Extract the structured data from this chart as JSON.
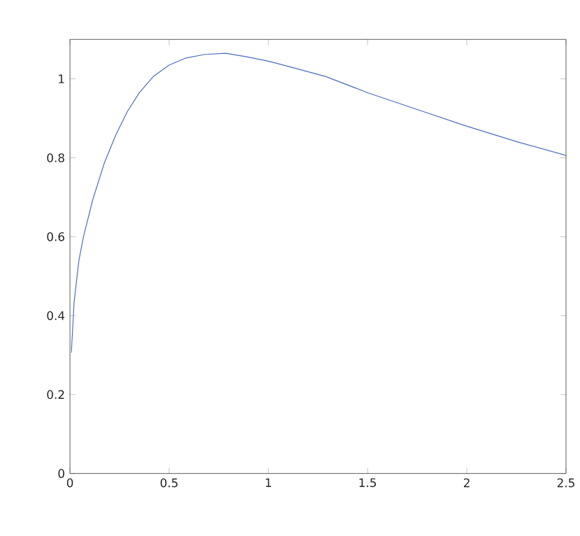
{
  "chart_data": {
    "type": "line",
    "x": [
      0.007,
      0.021,
      0.045,
      0.068,
      0.115,
      0.174,
      0.232,
      0.29,
      0.35,
      0.42,
      0.5,
      0.585,
      0.68,
      0.784,
      0.89,
      1.007,
      1.12,
      1.289,
      1.5,
      1.758,
      2.0,
      2.251,
      2.5
    ],
    "values": [
      0.306,
      0.435,
      0.54,
      0.6,
      0.694,
      0.788,
      0.859,
      0.918,
      0.965,
      1.006,
      1.035,
      1.053,
      1.062,
      1.065,
      1.056,
      1.044,
      1.029,
      1.006,
      0.965,
      0.921,
      0.88,
      0.841,
      0.806
    ],
    "color": "#4a6cc0",
    "xlim": [
      0,
      2.5
    ],
    "ylim": [
      0,
      1.1
    ],
    "xticks": [
      0,
      0.5,
      1,
      1.5,
      2,
      2.5
    ],
    "yticks": [
      0,
      0.2,
      0.4,
      0.6,
      0.8,
      1
    ],
    "grid": false,
    "marker": "none",
    "line_style": "solid"
  }
}
